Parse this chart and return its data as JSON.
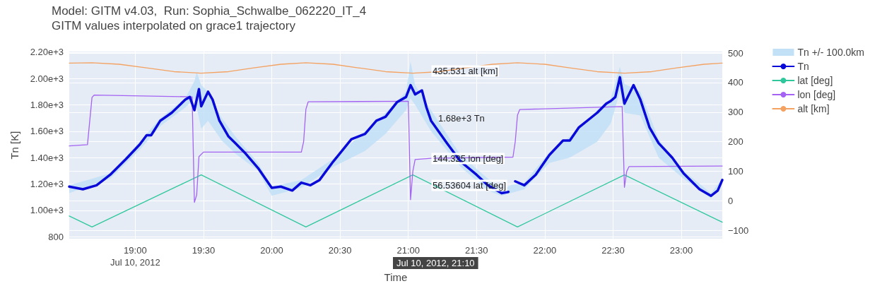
{
  "chart_data": {
    "type": "line",
    "title": "Model: GITM v4.03,  Run: Sophia_Schwalbe_062220_IT_4",
    "subtitle": "GITM values interpolated on grace1 trajectory",
    "xlabel": "Time",
    "ylabel": "Tn [K]",
    "xlim": [
      "2012-07-10T18:31",
      "2012-07-10T23:18"
    ],
    "xticks": [
      {
        "value": "2012-07-10T19:00",
        "label": "19:00\nJul 10, 2012"
      },
      {
        "value": "2012-07-10T19:30",
        "label": "19:30"
      },
      {
        "value": "2012-07-10T20:00",
        "label": "20:00"
      },
      {
        "value": "2012-07-10T20:30",
        "label": "20:30"
      },
      {
        "value": "2012-07-10T21:00",
        "label": "21:00"
      },
      {
        "value": "2012-07-10T21:30",
        "label": "21:30"
      },
      {
        "value": "2012-07-10T22:00",
        "label": "22:00"
      },
      {
        "value": "2012-07-10T22:30",
        "label": "22:30"
      },
      {
        "value": "2012-07-10T23:00",
        "label": "23:00"
      }
    ],
    "ylim": [
      784,
      2205
    ],
    "yticks": [
      800,
      {
        "value": 1000,
        "label": "1.00e+3"
      },
      {
        "value": 1200,
        "label": "1.20e+3"
      },
      {
        "value": 1400,
        "label": "1.40e+3"
      },
      {
        "value": 1600,
        "label": "1.60e+3"
      },
      {
        "value": 1800,
        "label": "1.80e+3"
      },
      {
        "value": 2000,
        "label": "2.00e+3"
      },
      {
        "value": 2200,
        "label": "2.20e+3"
      }
    ],
    "y2lim": [
      -128,
      505
    ],
    "y2ticks": [
      {
        "value": -100,
        "label": "−100"
      },
      0,
      100,
      200,
      300,
      400,
      500
    ],
    "grid": true,
    "legend": "top right",
    "marker": "none",
    "series": [
      {
        "name": "Tn +/- 100.0km",
        "type": "area",
        "color": "#c2e1f7",
        "x": [
          "2012-07-10T18:31",
          "2012-07-10T18:49",
          "2012-07-10T19:02",
          "2012-07-10T19:11",
          "2012-07-10T19:22",
          "2012-07-10T19:26",
          "2012-07-10T19:27",
          "2012-07-10T19:29",
          "2012-07-10T19:32",
          "2012-07-10T19:38",
          "2012-07-10T19:44",
          "2012-07-10T19:54",
          "2012-07-10T20:00",
          "2012-07-10T20:13",
          "2012-07-10T20:27",
          "2012-07-10T20:41",
          "2012-07-10T20:50",
          "2012-07-10T20:59",
          "2012-07-10T21:01",
          "2012-07-10T21:03",
          "2012-07-10T21:10",
          "2012-07-10T21:23",
          "2012-07-10T21:35",
          "2012-07-10T21:41",
          "2012-07-10T21:45",
          "2012-07-10T21:51",
          "2012-07-10T22:02",
          "2012-07-10T22:11",
          "2012-07-10T22:23",
          "2012-07-10T22:29",
          "2012-07-10T22:33",
          "2012-07-10T22:35",
          "2012-07-10T22:42",
          "2012-07-10T22:50",
          "2012-07-10T23:01",
          "2012-07-10T23:13",
          "2012-07-10T23:18"
        ],
        "values": [
          null,
          null,
          null,
          null,
          null,
          null,
          null,
          null,
          null,
          null,
          null,
          null,
          null,
          null,
          null,
          null,
          null,
          null,
          null,
          null,
          null,
          null,
          null,
          null,
          null,
          null,
          null,
          null,
          null,
          null,
          null,
          null,
          null,
          null,
          null,
          null,
          null
        ],
        "lower": [
          1130,
          1240,
          1460,
          1640,
          1780,
          1850,
          1780,
          1620,
          1680,
          1530,
          1430,
          1300,
          1110,
          1170,
          1330,
          1450,
          1580,
          1760,
          1850,
          1800,
          1600,
          1330,
          1150,
          1110,
          1130,
          1160,
          1360,
          1400,
          1520,
          1660,
          1900,
          1740,
          1720,
          1400,
          1240,
          1090,
          1200
        ],
        "upper": [
          1190,
          1280,
          1520,
          1700,
          1850,
          1980,
          2050,
          1950,
          1900,
          1700,
          1560,
          1360,
          1180,
          1230,
          1390,
          1600,
          1740,
          1900,
          2130,
          1950,
          1760,
          1420,
          1240,
          1150,
          1190,
          1210,
          1440,
          1560,
          1760,
          1850,
          2090,
          1960,
          1900,
          1540,
          1300,
          1130,
          1240
        ]
      },
      {
        "name": "Tn",
        "color": "#0a0ad8",
        "x": [
          "2012-07-10T18:31",
          "2012-07-10T18:37",
          "2012-07-10T18:43",
          "2012-07-10T18:49",
          "2012-07-10T18:56",
          "2012-07-10T19:02",
          "2012-07-10T19:05",
          "2012-07-10T19:07",
          "2012-07-10T19:11",
          "2012-07-10T19:16",
          "2012-07-10T19:22",
          "2012-07-10T19:24",
          "2012-07-10T19:26",
          "2012-07-10T19:28",
          "2012-07-10T19:29",
          "2012-07-10T19:32",
          "2012-07-10T19:34",
          "2012-07-10T19:37",
          "2012-07-10T19:41",
          "2012-07-10T19:44",
          "2012-07-10T19:48",
          "2012-07-10T19:54",
          "2012-07-10T20:00",
          "2012-07-10T20:04",
          "2012-07-10T20:09",
          "2012-07-10T20:13",
          "2012-07-10T20:17",
          "2012-07-10T20:21",
          "2012-07-10T20:27",
          "2012-07-10T20:35",
          "2012-07-10T20:41",
          "2012-07-10T20:46",
          "2012-07-10T20:50",
          "2012-07-10T20:55",
          "2012-07-10T20:59",
          "2012-07-10T21:01",
          "2012-07-10T21:03",
          "2012-07-10T21:06",
          "2012-07-10T21:08",
          "2012-07-10T21:10",
          "2012-07-10T21:17",
          "2012-07-10T21:23",
          "2012-07-10T21:30",
          "2012-07-10T21:35",
          "2012-07-10T21:41",
          "2012-07-10T21:44",
          "2012-07-10T21:45",
          "2012-07-10T21:47",
          "2012-07-10T21:51",
          "2012-07-10T21:56",
          "2012-07-10T22:02",
          "2012-07-10T22:08",
          "2012-07-10T22:11",
          "2012-07-10T22:15",
          "2012-07-10T22:23",
          "2012-07-10T22:27",
          "2012-07-10T22:29",
          "2012-07-10T22:31",
          "2012-07-10T22:33",
          "2012-07-10T22:35",
          "2012-07-10T22:39",
          "2012-07-10T22:42",
          "2012-07-10T22:46",
          "2012-07-10T22:50",
          "2012-07-10T22:56",
          "2012-07-10T23:01",
          "2012-07-10T23:08",
          "2012-07-10T23:13",
          "2012-07-10T23:16",
          "2012-07-10T23:18"
        ],
        "values": [
          1180,
          1160,
          1190,
          1270,
          1390,
          1500,
          1570,
          1570,
          1680,
          1740,
          1840,
          1860,
          1760,
          1920,
          1790,
          1900,
          1840,
          1680,
          1560,
          1510,
          1440,
          1320,
          1170,
          1180,
          1150,
          1210,
          1190,
          1230,
          1370,
          1540,
          1580,
          1680,
          1710,
          1820,
          1860,
          1950,
          1880,
          1910,
          1780,
          1680,
          1510,
          1370,
          1270,
          1190,
          1130,
          1140,
          null,
          1220,
          1190,
          1270,
          1420,
          1530,
          1530,
          1630,
          1740,
          1810,
          1830,
          1860,
          2010,
          1810,
          1950,
          1840,
          1630,
          1510,
          1400,
          1280,
          1160,
          1110,
          1150,
          1230
        ]
      },
      {
        "name": "lat [deg]",
        "color": "#2fc79b",
        "axis": "y2",
        "x": [
          "2012-07-10T18:31",
          "2012-07-10T18:41",
          "2012-07-10T19:29",
          "2012-07-10T20:15",
          "2012-07-10T21:02",
          "2012-07-10T21:48",
          "2012-07-10T22:35",
          "2012-07-10T23:18"
        ],
        "values": [
          -51,
          -88,
          88,
          -88,
          88,
          -88,
          88,
          -72
        ]
      },
      {
        "name": "lon [deg]",
        "color": "#a463f2",
        "axis": "y2",
        "x": [
          "2012-07-10T18:31",
          "2012-07-10T18:39",
          "2012-07-10T18:41",
          "2012-07-10T18:42",
          "2012-07-10T19:25",
          "2012-07-10T19:26",
          "2012-07-10T19:27",
          "2012-07-10T19:28",
          "2012-07-10T19:30",
          "2012-07-10T20:13",
          "2012-07-10T20:14",
          "2012-07-10T20:15",
          "2012-07-10T20:16",
          "2012-07-10T21:00",
          "2012-07-10T21:01",
          "2012-07-10T21:02",
          "2012-07-10T21:03",
          "2012-07-10T21:10",
          "2012-07-10T21:46",
          "2012-07-10T21:47",
          "2012-07-10T21:48",
          "2012-07-10T21:49",
          "2012-07-10T22:34",
          "2012-07-10T22:35",
          "2012-07-10T22:36",
          "2012-07-10T22:37",
          "2012-07-10T23:18"
        ],
        "values": [
          186,
          190,
          350,
          358,
          352,
          -5,
          20,
          150,
          165,
          165,
          200,
          310,
          335,
          337,
          4,
          100,
          140,
          144,
          148,
          200,
          290,
          309,
          319,
          46,
          100,
          116,
          118
        ]
      },
      {
        "name": "alt [km]",
        "color": "#f4a261",
        "axis": "y2",
        "x": [
          "2012-07-10T18:31",
          "2012-07-10T18:41",
          "2012-07-10T18:53",
          "2012-07-10T19:05",
          "2012-07-10T19:17",
          "2012-07-10T19:29",
          "2012-07-10T19:41",
          "2012-07-10T19:52",
          "2012-07-10T20:04",
          "2012-07-10T20:15",
          "2012-07-10T20:27",
          "2012-07-10T20:38",
          "2012-07-10T20:50",
          "2012-07-10T21:02",
          "2012-07-10T21:14",
          "2012-07-10T21:25",
          "2012-07-10T21:37",
          "2012-07-10T21:48",
          "2012-07-10T22:00",
          "2012-07-10T22:11",
          "2012-07-10T22:23",
          "2012-07-10T22:35",
          "2012-07-10T22:47",
          "2012-07-10T22:58",
          "2012-07-10T23:10",
          "2012-07-10T23:18"
        ],
        "values": [
          466,
          467,
          462,
          450,
          437,
          432,
          437,
          450,
          462,
          467,
          462,
          450,
          437,
          432,
          437,
          450,
          462,
          467,
          462,
          450,
          437,
          432,
          437,
          450,
          462,
          466
        ]
      }
    ],
    "annotations": [
      "435.531 alt [km]",
      {
        "text": "1.68e+3 Tn",
        "x": "2012-07-10T21:10",
        "y": 1680
      },
      "144.325 lon [deg]",
      "56.53604 lat [deg]",
      "Jul 10, 2012, 21:10"
    ]
  }
}
